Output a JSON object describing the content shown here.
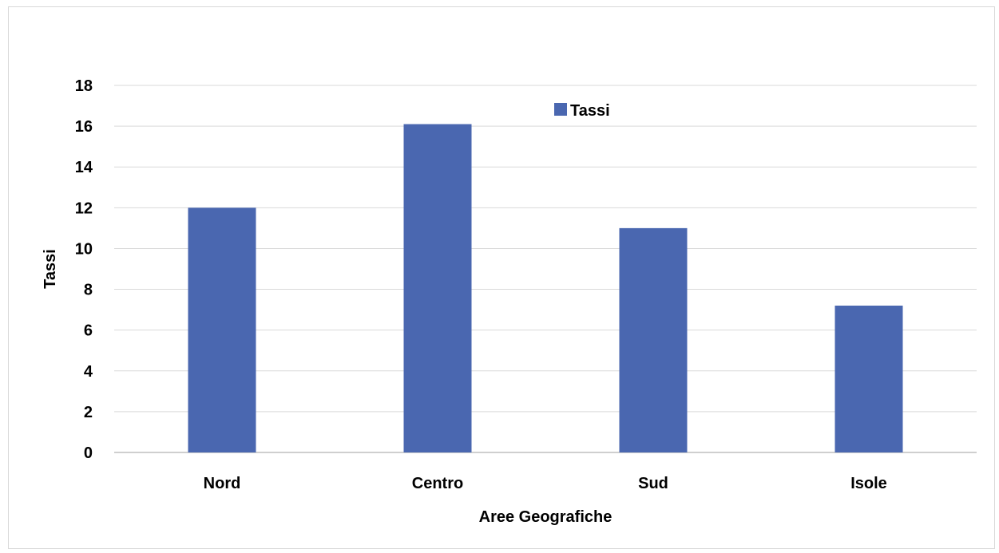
{
  "chart_data": {
    "type": "bar",
    "categories": [
      "Nord",
      "Centro",
      "Sud",
      "Isole"
    ],
    "series": [
      {
        "name": "Tassi",
        "values": [
          12,
          16.1,
          11,
          7.2
        ]
      }
    ],
    "title": "",
    "xlabel": "Aree Geografiche",
    "ylabel": "Tassi",
    "ylim": [
      0,
      18
    ],
    "yticks": [
      0,
      2,
      4,
      6,
      8,
      10,
      12,
      14,
      16,
      18
    ],
    "grid": true,
    "legend": "top-center",
    "colors": {
      "bar": "#4a67b0",
      "grid": "#d9d9d9"
    }
  }
}
